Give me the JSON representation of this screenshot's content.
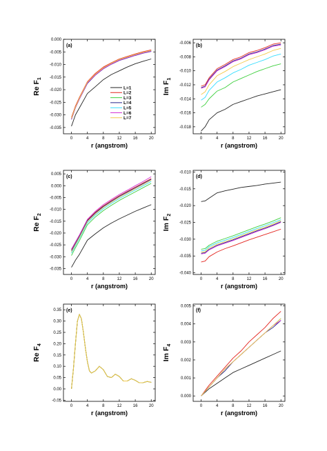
{
  "chart_data": [
    {
      "type": "line",
      "panel_label": "(a)",
      "ylabel": "Re F",
      "ylabel_sub": "1",
      "xlabel": "r (angstrom)",
      "xlim": [
        -2,
        21
      ],
      "ylim": [
        -0.0375,
        0.0
      ],
      "xticks": [
        "0",
        "4",
        "8",
        "12",
        "16",
        "20"
      ],
      "yticks": [
        "-0.035",
        "-0.030",
        "-0.025",
        "-0.020",
        "-0.015",
        "-0.010",
        "-0.005",
        "0.000"
      ],
      "legend": {
        "position": "center-right",
        "entries": [
          "L=1",
          "L=2",
          "L=3",
          "L=4",
          "L=5",
          "L=6",
          "L=7"
        ]
      },
      "x": [
        0,
        1,
        2,
        4,
        6,
        8,
        10,
        12,
        14,
        16,
        18,
        20
      ],
      "series": [
        {
          "name": "L=1",
          "color": "#222222",
          "values": [
            -0.0345,
            -0.03,
            -0.0272,
            -0.0215,
            -0.0188,
            -0.016,
            -0.014,
            -0.0125,
            -0.011,
            -0.0097,
            -0.0087,
            -0.0078
          ]
        },
        {
          "name": "L=2",
          "color": "#e3221c",
          "values": [
            -0.031,
            -0.0265,
            -0.023,
            -0.0168,
            -0.0135,
            -0.011,
            -0.0093,
            -0.0078,
            -0.0068,
            -0.0058,
            -0.0049,
            -0.0042
          ]
        },
        {
          "name": "L=3",
          "color": "#3ccf3c",
          "values": [
            -0.0316,
            -0.027,
            -0.0235,
            -0.0172,
            -0.014,
            -0.0115,
            -0.0097,
            -0.0082,
            -0.0072,
            -0.0062,
            -0.0053,
            -0.0046
          ]
        },
        {
          "name": "L=4",
          "color": "#23238a",
          "values": [
            -0.0318,
            -0.0272,
            -0.0237,
            -0.0175,
            -0.0142,
            -0.0117,
            -0.0099,
            -0.0084,
            -0.0074,
            -0.0064,
            -0.0055,
            -0.0048
          ]
        },
        {
          "name": "L=5",
          "color": "#33ddff",
          "values": [
            -0.0315,
            -0.027,
            -0.0234,
            -0.0171,
            -0.0139,
            -0.0114,
            -0.0096,
            -0.0081,
            -0.0071,
            -0.0061,
            -0.0052,
            -0.0045
          ]
        },
        {
          "name": "L=6",
          "color": "#d432d4",
          "values": [
            -0.0317,
            -0.0271,
            -0.0236,
            -0.0173,
            -0.0141,
            -0.0116,
            -0.0098,
            -0.0083,
            -0.0073,
            -0.0063,
            -0.0054,
            -0.0047
          ]
        },
        {
          "name": "L=7",
          "color": "#f4c94a",
          "values": [
            -0.0314,
            -0.0269,
            -0.0233,
            -0.017,
            -0.0138,
            -0.0113,
            -0.0095,
            -0.008,
            -0.007,
            -0.006,
            -0.0051,
            -0.0044
          ]
        }
      ]
    },
    {
      "type": "line",
      "panel_label": "(b)",
      "ylabel": "Im F",
      "ylabel_sub": "1",
      "xlabel": "r (angstrom)",
      "xlim": [
        -2,
        21
      ],
      "ylim": [
        -0.019,
        -0.0055
      ],
      "xticks": [
        "0",
        "4",
        "8",
        "12",
        "16",
        "20"
      ],
      "yticks": [
        "-0.018",
        "-0.016",
        "-0.014",
        "-0.012",
        "-0.010",
        "-0.008",
        "-0.006"
      ],
      "x": [
        0,
        1,
        2,
        4,
        6,
        8,
        10,
        12,
        14,
        16,
        18,
        20
      ],
      "series": [
        {
          "name": "L=1",
          "color": "#222222",
          "values": [
            -0.0186,
            -0.018,
            -0.017,
            -0.016,
            -0.0155,
            -0.0148,
            -0.0144,
            -0.014,
            -0.0136,
            -0.0133,
            -0.013,
            -0.0127
          ]
        },
        {
          "name": "L=2",
          "color": "#e3221c",
          "values": [
            -0.0122,
            -0.012,
            -0.011,
            -0.0097,
            -0.0091,
            -0.0084,
            -0.008,
            -0.0074,
            -0.0071,
            -0.0067,
            -0.0062,
            -0.006
          ]
        },
        {
          "name": "L=3",
          "color": "#3ccf3c",
          "values": [
            -0.0152,
            -0.0148,
            -0.014,
            -0.0129,
            -0.0124,
            -0.0116,
            -0.0111,
            -0.0106,
            -0.0101,
            -0.0097,
            -0.0093,
            -0.009
          ]
        },
        {
          "name": "L=4",
          "color": "#23238a",
          "values": [
            -0.0124,
            -0.0122,
            -0.0112,
            -0.0099,
            -0.0093,
            -0.0086,
            -0.0082,
            -0.0076,
            -0.0073,
            -0.0069,
            -0.0064,
            -0.0062
          ]
        },
        {
          "name": "L=5",
          "color": "#33ddff",
          "values": [
            -0.0142,
            -0.0138,
            -0.0128,
            -0.0116,
            -0.011,
            -0.0103,
            -0.0098,
            -0.0092,
            -0.0088,
            -0.0084,
            -0.0079,
            -0.0076
          ]
        },
        {
          "name": "L=6",
          "color": "#d432d4",
          "values": [
            -0.0125,
            -0.0123,
            -0.0113,
            -0.01,
            -0.0094,
            -0.0087,
            -0.0083,
            -0.0077,
            -0.0074,
            -0.007,
            -0.0065,
            -0.0063
          ]
        },
        {
          "name": "L=7",
          "color": "#f4c94a",
          "values": [
            -0.0134,
            -0.013,
            -0.012,
            -0.0107,
            -0.0101,
            -0.0094,
            -0.0089,
            -0.0084,
            -0.008,
            -0.0076,
            -0.0071,
            -0.0068
          ]
        }
      ]
    },
    {
      "type": "line",
      "panel_label": "(c)",
      "ylabel": "Re F",
      "ylabel_sub": "2",
      "xlabel": "r (angstrom)",
      "xlim": [
        -2,
        21
      ],
      "ylim": [
        -0.0375,
        0.0065
      ],
      "xticks": [
        "0",
        "4",
        "8",
        "12",
        "16",
        "20"
      ],
      "yticks": [
        "-0.035",
        "-0.030",
        "-0.025",
        "-0.020",
        "-0.015",
        "-0.010",
        "-0.005",
        "0.000",
        "0.005"
      ],
      "x": [
        0,
        1,
        2,
        4,
        6,
        8,
        10,
        12,
        14,
        16,
        18,
        20
      ],
      "series": [
        {
          "name": "L=1",
          "color": "#222222",
          "values": [
            -0.0345,
            -0.0315,
            -0.029,
            -0.023,
            -0.0203,
            -0.0178,
            -0.0158,
            -0.014,
            -0.0124,
            -0.0108,
            -0.0094,
            -0.008
          ]
        },
        {
          "name": "L=2",
          "color": "#e3221c",
          "values": [
            -0.027,
            -0.024,
            -0.021,
            -0.0145,
            -0.0112,
            -0.0085,
            -0.0063,
            -0.0042,
            -0.0024,
            -0.0006,
            0.0012,
            0.003
          ]
        },
        {
          "name": "L=3",
          "color": "#3ccf3c",
          "values": [
            -0.0295,
            -0.0262,
            -0.0232,
            -0.0165,
            -0.0132,
            -0.0105,
            -0.0083,
            -0.0062,
            -0.0044,
            -0.0026,
            -0.0008,
            0.001
          ]
        },
        {
          "name": "L=4",
          "color": "#23238a",
          "values": [
            -0.0275,
            -0.0244,
            -0.0214,
            -0.0148,
            -0.0115,
            -0.0088,
            -0.0066,
            -0.0045,
            -0.0027,
            -0.0009,
            0.0009,
            0.0027
          ]
        },
        {
          "name": "L=5",
          "color": "#33ddff",
          "values": [
            -0.0285,
            -0.0253,
            -0.0223,
            -0.0157,
            -0.0124,
            -0.0097,
            -0.0075,
            -0.0054,
            -0.0036,
            -0.0018,
            0.0,
            0.0018
          ]
        },
        {
          "name": "L=6",
          "color": "#d432d4",
          "values": [
            -0.0268,
            -0.0238,
            -0.0208,
            -0.0142,
            -0.0108,
            -0.008,
            -0.0058,
            -0.0037,
            -0.0019,
            0.0,
            0.0018,
            0.0038
          ]
        },
        {
          "name": "L=7",
          "color": "#f4c94a",
          "values": [
            -0.028,
            -0.0248,
            -0.0218,
            -0.0152,
            -0.0119,
            -0.0092,
            -0.007,
            -0.0049,
            -0.0031,
            -0.0013,
            0.0005,
            0.0023
          ]
        }
      ]
    },
    {
      "type": "line",
      "panel_label": "(d)",
      "ylabel": "Im F",
      "ylabel_sub": "2",
      "xlabel": "r (angstrom)",
      "xlim": [
        -2,
        21
      ],
      "ylim": [
        -0.0405,
        -0.0095
      ],
      "xticks": [
        "0",
        "4",
        "8",
        "12",
        "16",
        "20"
      ],
      "yticks": [
        "-0.040",
        "-0.035",
        "-0.030",
        "-0.025",
        "-0.020",
        "-0.015",
        "-0.010"
      ],
      "x": [
        0,
        1,
        2,
        4,
        6,
        8,
        10,
        12,
        14,
        16,
        18,
        20
      ],
      "series": [
        {
          "name": "L=1",
          "color": "#222222",
          "values": [
            -0.0188,
            -0.0186,
            -0.0178,
            -0.0162,
            -0.0156,
            -0.0151,
            -0.0146,
            -0.0143,
            -0.014,
            -0.0136,
            -0.0133,
            -0.013
          ]
        },
        {
          "name": "L=2",
          "color": "#e3221c",
          "values": [
            -0.0368,
            -0.0365,
            -0.0352,
            -0.0338,
            -0.0328,
            -0.032,
            -0.0311,
            -0.0302,
            -0.0294,
            -0.0286,
            -0.0278,
            -0.027
          ]
        },
        {
          "name": "L=3",
          "color": "#3ccf3c",
          "values": [
            -0.033,
            -0.0328,
            -0.0318,
            -0.0306,
            -0.0298,
            -0.029,
            -0.0281,
            -0.0272,
            -0.0263,
            -0.0255,
            -0.0246,
            -0.0236
          ]
        },
        {
          "name": "L=4",
          "color": "#23238a",
          "values": [
            -0.0342,
            -0.034,
            -0.033,
            -0.0318,
            -0.031,
            -0.0302,
            -0.0293,
            -0.0284,
            -0.0275,
            -0.0267,
            -0.0258,
            -0.0248
          ]
        },
        {
          "name": "L=5",
          "color": "#33ddff",
          "values": [
            -0.0335,
            -0.0333,
            -0.0322,
            -0.0311,
            -0.0303,
            -0.0295,
            -0.0286,
            -0.0277,
            -0.0268,
            -0.026,
            -0.0251,
            -0.0242
          ]
        },
        {
          "name": "L=6",
          "color": "#d432d4",
          "values": [
            -0.0344,
            -0.0342,
            -0.0332,
            -0.032,
            -0.0312,
            -0.0304,
            -0.0295,
            -0.0286,
            -0.0277,
            -0.0269,
            -0.026,
            -0.025
          ]
        },
        {
          "name": "L=7",
          "color": "#f4c94a",
          "values": [
            -0.0339,
            -0.0337,
            -0.0326,
            -0.0315,
            -0.0307,
            -0.0299,
            -0.029,
            -0.0281,
            -0.0272,
            -0.0264,
            -0.0255,
            -0.0245
          ]
        }
      ]
    },
    {
      "type": "line",
      "panel_label": "(e)",
      "ylabel": "Re F",
      "ylabel_sub": "4",
      "xlabel": "r (angstrom)",
      "xlim": [
        -2,
        21
      ],
      "ylim": [
        -0.055,
        0.375
      ],
      "xticks": [
        "0",
        "4",
        "8",
        "12",
        "16",
        "20"
      ],
      "yticks": [
        "-0.05",
        "0.00",
        "0.05",
        "0.10",
        "0.15",
        "0.20",
        "0.25",
        "0.30",
        "0.35"
      ],
      "x": [
        0,
        0.5,
        1,
        1.5,
        2,
        2.5,
        3,
        3.5,
        4,
        4.5,
        5,
        6,
        7,
        8,
        9,
        10,
        11,
        12,
        13,
        14,
        15,
        16,
        17,
        18,
        19,
        20
      ],
      "series": [
        {
          "name": "L=1",
          "color": "#222222",
          "values": [
            0.0,
            0.09,
            0.2,
            0.3,
            0.33,
            0.31,
            0.25,
            0.18,
            0.12,
            0.08,
            0.07,
            0.08,
            0.1,
            0.085,
            0.055,
            0.05,
            0.065,
            0.055,
            0.035,
            0.035,
            0.045,
            0.038,
            0.027,
            0.028,
            0.033,
            0.029
          ]
        },
        {
          "name": "L=2",
          "color": "#e3221c",
          "values": [
            0.0,
            0.09,
            0.2,
            0.3,
            0.33,
            0.31,
            0.25,
            0.18,
            0.12,
            0.08,
            0.07,
            0.08,
            0.1,
            0.085,
            0.055,
            0.05,
            0.065,
            0.055,
            0.035,
            0.035,
            0.045,
            0.038,
            0.027,
            0.028,
            0.033,
            0.029
          ]
        },
        {
          "name": "L=3",
          "color": "#3ccf3c",
          "values": [
            0.0,
            0.09,
            0.2,
            0.3,
            0.33,
            0.31,
            0.25,
            0.18,
            0.12,
            0.08,
            0.07,
            0.08,
            0.1,
            0.085,
            0.055,
            0.05,
            0.065,
            0.055,
            0.035,
            0.035,
            0.045,
            0.038,
            0.027,
            0.028,
            0.033,
            0.029
          ]
        },
        {
          "name": "L=7",
          "color": "#f4c94a",
          "values": [
            0.0,
            0.09,
            0.2,
            0.3,
            0.33,
            0.31,
            0.25,
            0.18,
            0.12,
            0.08,
            0.07,
            0.08,
            0.1,
            0.085,
            0.055,
            0.05,
            0.065,
            0.055,
            0.035,
            0.035,
            0.045,
            0.038,
            0.027,
            0.028,
            0.033,
            0.029
          ]
        }
      ]
    },
    {
      "type": "line",
      "panel_label": "(f)",
      "ylabel": "Im F",
      "ylabel_sub": "4",
      "xlabel": "r (angstrom)",
      "xlim": [
        -2,
        21
      ],
      "ylim": [
        -0.0003,
        0.0051
      ],
      "xticks": [
        "0",
        "4",
        "8",
        "12",
        "16",
        "20"
      ],
      "yticks": [
        "0.000",
        "0.001",
        "0.002",
        "0.003",
        "0.004",
        "0.005"
      ],
      "x": [
        0,
        2,
        4,
        6,
        8,
        10,
        12,
        14,
        16,
        18,
        20
      ],
      "series": [
        {
          "name": "L=1",
          "color": "#222222",
          "values": [
            0.0,
            0.0004,
            0.0007,
            0.001,
            0.0013,
            0.0015,
            0.0017,
            0.0019,
            0.0021,
            0.0023,
            0.0025
          ]
        },
        {
          "name": "L=2",
          "color": "#e3221c",
          "values": [
            0.0,
            0.0006,
            0.0011,
            0.0016,
            0.0021,
            0.0025,
            0.003,
            0.0034,
            0.0038,
            0.0043,
            0.0047
          ]
        },
        {
          "name": "L=3",
          "color": "#3ccf3c",
          "values": [
            0.0,
            0.0005,
            0.001,
            0.0015,
            0.0019,
            0.0023,
            0.0027,
            0.0031,
            0.0035,
            0.0039,
            0.0043
          ]
        },
        {
          "name": "L=4",
          "color": "#23238a",
          "values": [
            0.0,
            0.0005,
            0.001,
            0.0014,
            0.0019,
            0.0023,
            0.0027,
            0.0031,
            0.0035,
            0.0038,
            0.0042
          ]
        },
        {
          "name": "L=5",
          "color": "#33ddff",
          "values": [
            0.0,
            0.0005,
            0.001,
            0.0015,
            0.0019,
            0.0023,
            0.0027,
            0.0031,
            0.0035,
            0.0039,
            0.0043
          ]
        },
        {
          "name": "L=6",
          "color": "#d432d4",
          "values": [
            0.0,
            0.0005,
            0.001,
            0.0015,
            0.0019,
            0.0023,
            0.0027,
            0.0031,
            0.0035,
            0.0039,
            0.0042
          ]
        },
        {
          "name": "L=7",
          "color": "#f4c94a",
          "values": [
            0.0,
            0.0005,
            0.001,
            0.0015,
            0.0019,
            0.0023,
            0.0027,
            0.0031,
            0.0035,
            0.0039,
            0.0043
          ]
        }
      ]
    }
  ]
}
